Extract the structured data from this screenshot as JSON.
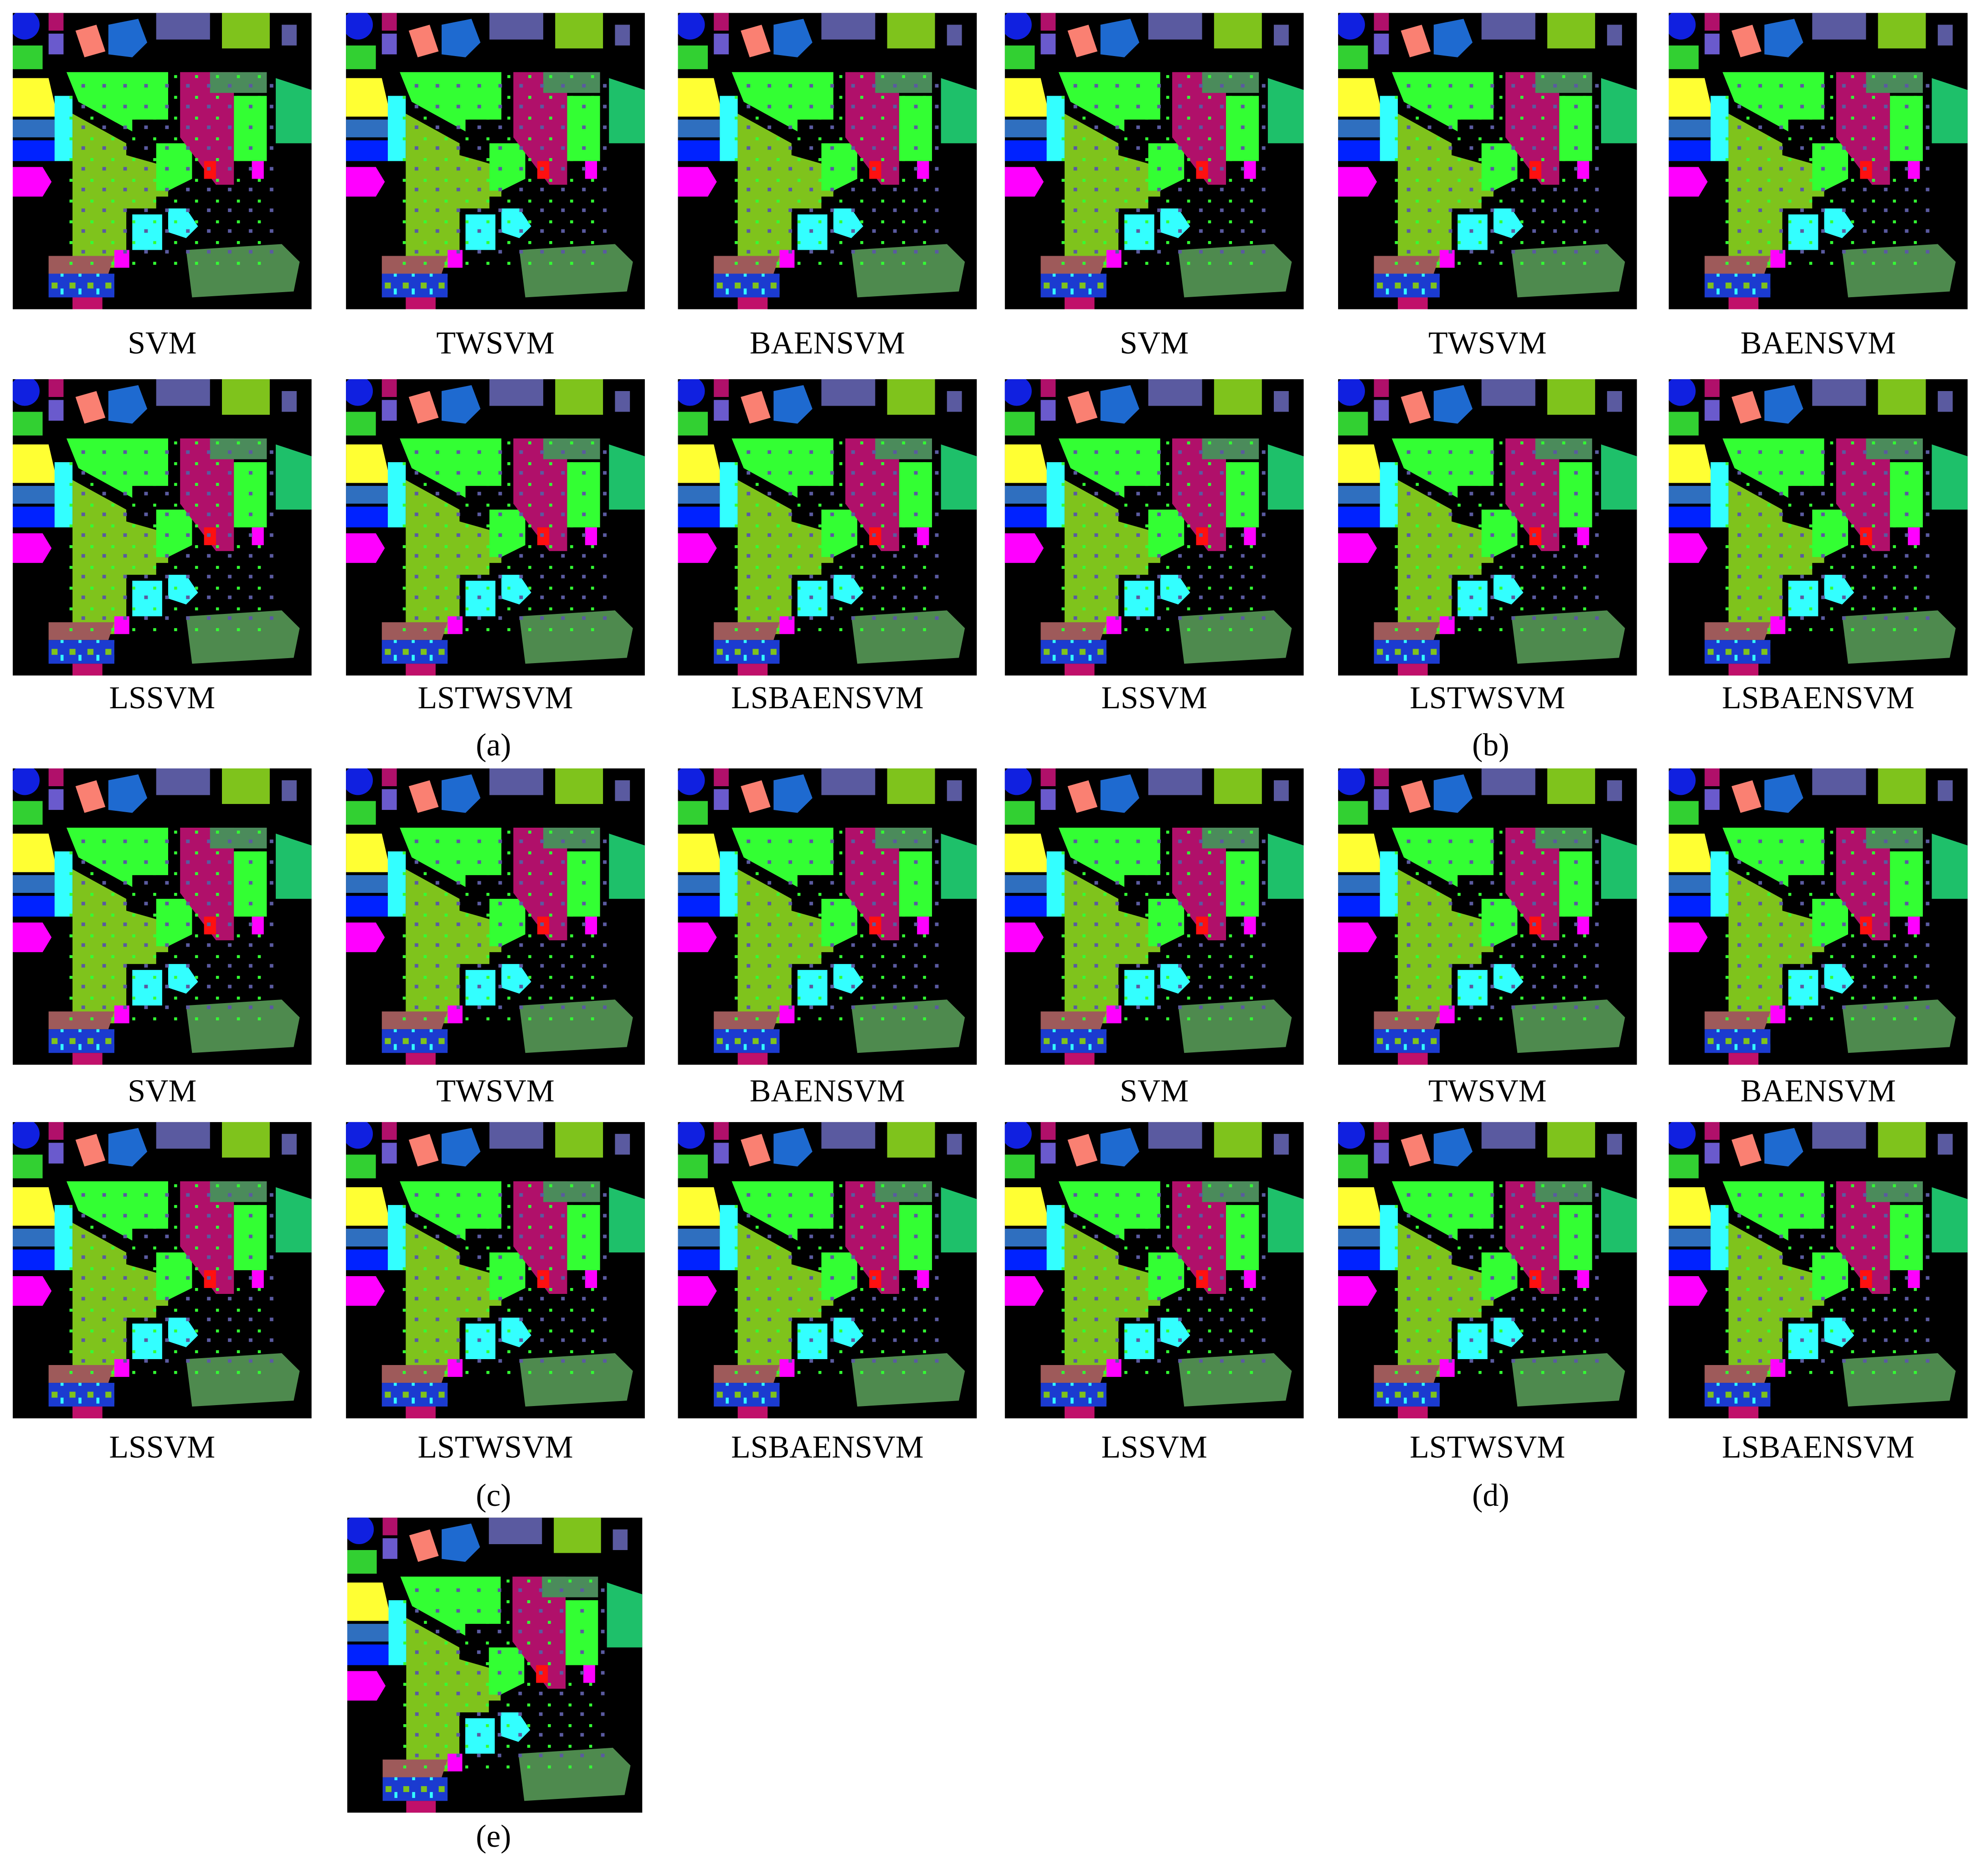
{
  "panels": [
    {
      "label": "(a)",
      "maps": [
        "SVM",
        "TWSVM",
        "BAENSVM",
        "LSSVM",
        "LSTWSVM",
        "LSBAENSVM"
      ]
    },
    {
      "label": "(b)",
      "maps": [
        "SVM",
        "TWSVM",
        "BAENSVM",
        "LSSVM",
        "LSTWSVM",
        "LSBAENSVM"
      ]
    },
    {
      "label": "(c)",
      "maps": [
        "SVM",
        "TWSVM",
        "BAENSVM",
        "LSSVM",
        "LSTWSVM",
        "LSBAENSVM"
      ]
    },
    {
      "label": "(d)",
      "maps": [
        "SVM",
        "TWSVM",
        "BAENSVM",
        "LSSVM",
        "LSTWSVM",
        "LSBAENSVM"
      ]
    },
    {
      "label": "(e)",
      "maps": []
    }
  ]
}
